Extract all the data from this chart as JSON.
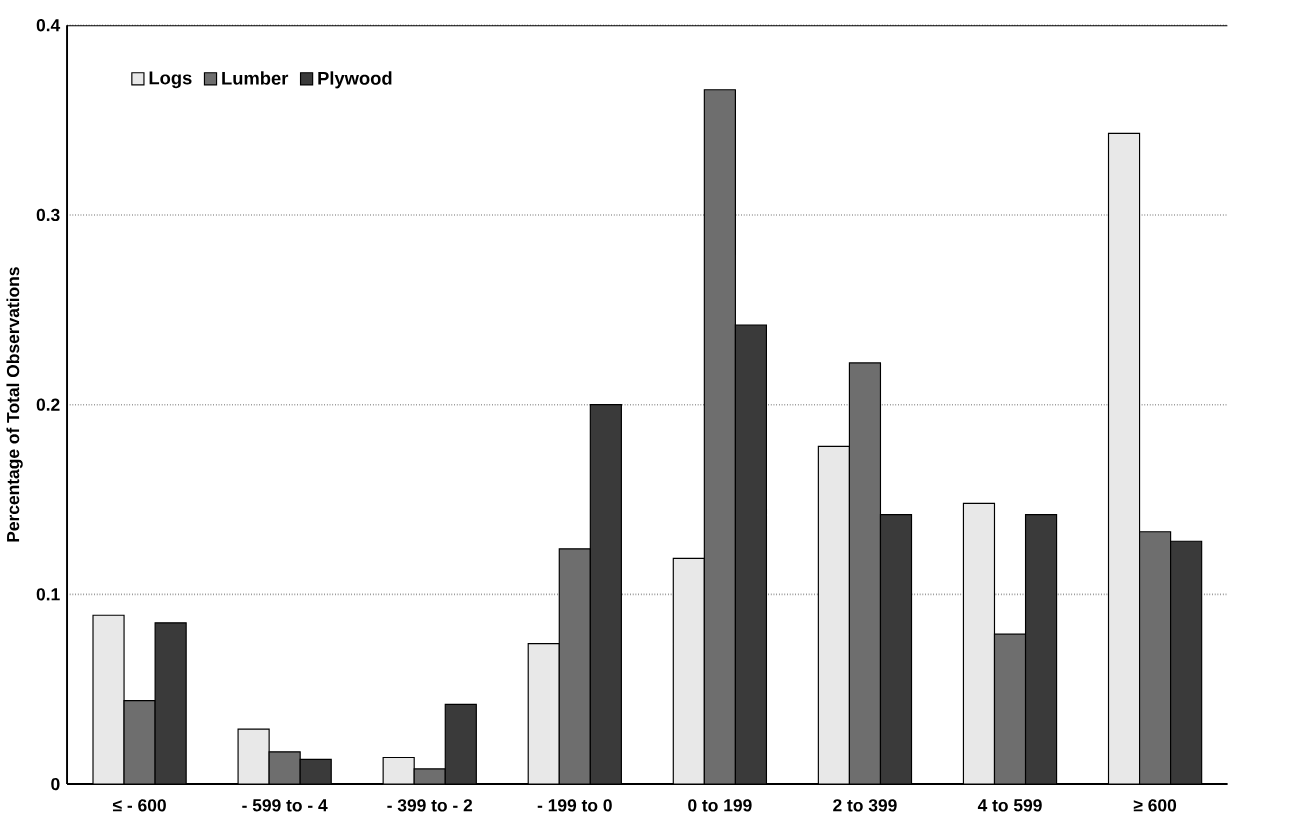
{
  "chart_data": {
    "type": "bar",
    "ylabel": "Percentage of Total Observations",
    "categories": [
      "≤ - 600",
      "- 599 to - 4",
      "- 399 to - 2",
      "- 199 to 0",
      "0 to 199",
      "2 to 399",
      "4 to 599",
      "≥ 600"
    ],
    "series": [
      {
        "name": "Logs",
        "color": "#e8e8e8",
        "values": [
          0.089,
          0.029,
          0.014,
          0.074,
          0.119,
          0.178,
          0.148,
          0.343
        ]
      },
      {
        "name": "Lumber",
        "color": "#6e6e6e",
        "values": [
          0.044,
          0.017,
          0.008,
          0.124,
          0.366,
          0.222,
          0.079,
          0.133
        ]
      },
      {
        "name": "Plywood",
        "color": "#3a3a3a",
        "values": [
          0.085,
          0.013,
          0.042,
          0.2,
          0.242,
          0.142,
          0.142,
          0.128
        ]
      }
    ],
    "ylim": [
      0,
      0.4
    ],
    "yticks": [
      0,
      0.1,
      0.2,
      0.3,
      0.4
    ],
    "grid": "y",
    "legend": "top left"
  }
}
